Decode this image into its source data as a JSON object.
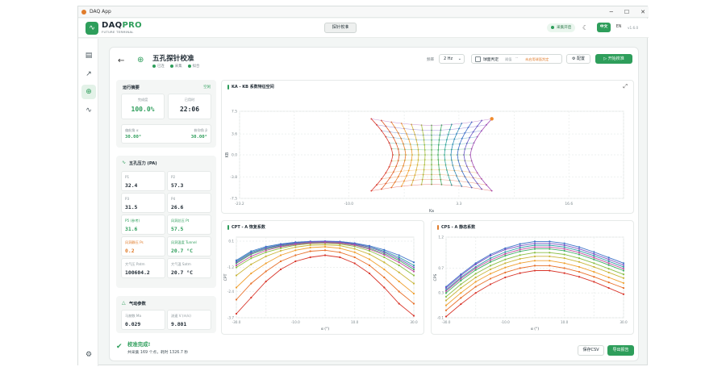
{
  "window": {
    "title": "DAQ App",
    "controls": [
      "─",
      "☐",
      "✕"
    ]
  },
  "header": {
    "brand_prefix": "DAQ",
    "brand_suffix": "PRO",
    "brand_sub": "FUTURE TERMINAL",
    "center_button": "探针校准",
    "status": "采集开启",
    "lang_active": "中文",
    "lang_other": "EN",
    "version": "v1.6.0"
  },
  "sidebar": {
    "items": [
      {
        "icon": "document-icon",
        "glyph": "▤",
        "active": false
      },
      {
        "icon": "trend-icon",
        "glyph": "↗",
        "active": false
      },
      {
        "icon": "target-icon",
        "glyph": "⊕",
        "active": true
      },
      {
        "icon": "curve-icon",
        "glyph": "∿",
        "active": false
      }
    ],
    "settings_glyph": "⚙"
  },
  "page": {
    "title": "五孔探针校准",
    "steps": [
      "已连",
      "采集",
      "拟合"
    ],
    "freq_label": "频率",
    "freq_value": "2 Hz",
    "ball_label": "球面判定",
    "ball_sub": "阈值",
    "ball_dash": "--",
    "ball_warn": "未启用球面判定",
    "config": "配置",
    "start": "开始校准"
  },
  "summary": {
    "title": "运行摘要",
    "state": "空闲",
    "done_label": "完成度",
    "done_value": "100.0%",
    "time_label": "已用时",
    "time_value": "22:06",
    "yaw_label": "偏航角 α",
    "yaw_value": "30.00°",
    "pitch_label": "俯仰角 β",
    "pitch_value": "30.00°"
  },
  "pressure": {
    "title": "五孔压力 (PA)",
    "cells": [
      {
        "k": "P1",
        "v": "32.4"
      },
      {
        "k": "P2",
        "v": "57.3"
      },
      {
        "k": "P3",
        "v": "31.5"
      },
      {
        "k": "P4",
        "v": "26.6"
      },
      {
        "k": "P5 (参考)",
        "v": "31.6"
      },
      {
        "k": "风洞总压 Pt",
        "v": "57.5"
      },
      {
        "k": "风洞静压 Ps",
        "v": "0.2"
      },
      {
        "k": "风洞温度 Tunnel",
        "v": "20.7 °C"
      },
      {
        "k": "大气压 Patm",
        "v": "100604.2"
      },
      {
        "k": "大气温 Satm",
        "v": "20.7 °C"
      }
    ]
  },
  "aero": {
    "title": "气动参数",
    "mach_label": "马赫数 Ma",
    "mach_value": "0.029",
    "vel_label": "流速 V (m/s)",
    "vel_value": "9.801"
  },
  "plots": {
    "top_title": "KA - KB 系数特征空间",
    "cpt_title": "CPT - A 恢复系数",
    "cps_title": "CPS - A 静态系数",
    "top_xlabel": "Ka",
    "top_ylabel": "KB",
    "cpt_ylabel": "CPT",
    "cps_ylabel": "CPS",
    "bottom_xlabel": "α (°)"
  },
  "chart_data": [
    {
      "type": "scatter",
      "title": "KA - KB 系数特征空间",
      "xlabel": "Ka",
      "ylabel": "KB",
      "xlim": [
        -23.2,
        23.2
      ],
      "ylim": [
        -7.5,
        7.5
      ],
      "x_ticks": [
        "-23.2",
        "-16.6",
        "-10.0",
        "-3.3",
        "3.3",
        "10.0",
        "16.6",
        "23.2"
      ],
      "y_ticks": [
        "7.5",
        "3.6",
        "0.0",
        "-3.8",
        "-7.5"
      ],
      "grid": true,
      "description_values": {
        "grid_columns": 13,
        "grid_rows": 13,
        "ka_range": [
          -6.5,
          6.5
        ],
        "kb_range": [
          -6.2,
          6.2
        ],
        "highlight_point": [
          6.5,
          6.2
        ]
      }
    },
    {
      "type": "line",
      "title": "CPT - A 恢复系数",
      "xlabel": "α (°)",
      "ylabel": "CPT",
      "xlim": [
        -30,
        30
      ],
      "ylim": [
        -3.7,
        0.3
      ],
      "x_ticks": [
        "-30.0",
        "-20.0",
        "-10.0",
        "0.0",
        "10.0",
        "20.0",
        "30.0"
      ],
      "y_ticks": [
        "0.1",
        "-1.2",
        "-2.4",
        "-3.7"
      ],
      "x": [
        -30,
        -25,
        -20,
        -15,
        -10,
        -5,
        0,
        5,
        10,
        15,
        20,
        25,
        30
      ],
      "series": [
        {
          "color": "#d9362b",
          "values": [
            -3.5,
            -2.7,
            -1.9,
            -1.3,
            -0.9,
            -0.7,
            -0.6,
            -0.7,
            -1.0,
            -1.5,
            -2.2,
            -3.0,
            -3.6
          ]
        },
        {
          "color": "#e8702a",
          "values": [
            -2.8,
            -2.0,
            -1.4,
            -0.9,
            -0.6,
            -0.4,
            -0.35,
            -0.45,
            -0.7,
            -1.1,
            -1.7,
            -2.4,
            -3.0
          ]
        },
        {
          "color": "#f0a030",
          "values": [
            -2.2,
            -1.5,
            -1.0,
            -0.6,
            -0.35,
            -0.22,
            -0.18,
            -0.25,
            -0.45,
            -0.8,
            -1.3,
            -1.9,
            -2.5
          ]
        },
        {
          "color": "#c9b63a",
          "values": [
            -1.6,
            -1.05,
            -0.65,
            -0.38,
            -0.2,
            -0.1,
            -0.08,
            -0.12,
            -0.28,
            -0.55,
            -0.95,
            -1.45,
            -2.0
          ]
        },
        {
          "color": "#8cbf45",
          "values": [
            -1.2,
            -0.75,
            -0.45,
            -0.25,
            -0.1,
            -0.02,
            0.0,
            -0.04,
            -0.16,
            -0.38,
            -0.7,
            -1.1,
            -1.6
          ]
        },
        {
          "color": "#3fae64",
          "values": [
            -1.0,
            -0.55,
            -0.3,
            -0.14,
            -0.03,
            0.03,
            0.05,
            0.02,
            -0.08,
            -0.26,
            -0.52,
            -0.85,
            -1.3
          ]
        },
        {
          "color": "#2f9aa8",
          "values": [
            -0.9,
            -0.45,
            -0.22,
            -0.08,
            0.02,
            0.07,
            0.08,
            0.06,
            -0.03,
            -0.18,
            -0.4,
            -0.7,
            -1.1
          ]
        },
        {
          "color": "#3c72c8",
          "values": [
            -0.85,
            -0.4,
            -0.17,
            -0.04,
            0.05,
            0.09,
            0.1,
            0.08,
            0.0,
            -0.13,
            -0.33,
            -0.6,
            -0.95
          ]
        },
        {
          "color": "#7b55c4",
          "values": [
            -0.95,
            -0.5,
            -0.25,
            -0.1,
            0.0,
            0.06,
            0.08,
            0.05,
            -0.04,
            -0.2,
            -0.45,
            -0.78,
            -1.2
          ]
        },
        {
          "color": "#c04aa0",
          "values": [
            -1.1,
            -0.65,
            -0.36,
            -0.18,
            -0.06,
            0.01,
            0.03,
            0.0,
            -0.1,
            -0.3,
            -0.58,
            -0.95,
            -1.4
          ]
        }
      ]
    },
    {
      "type": "line",
      "title": "CPS - A 静态系数",
      "xlabel": "α (°)",
      "ylabel": "CPS",
      "xlim": [
        -30,
        30
      ],
      "ylim": [
        -0.1,
        1.2
      ],
      "x_ticks": [
        "-30.0",
        "-20.0",
        "-10.0",
        "0.0",
        "10.0",
        "20.0",
        "30.0"
      ],
      "y_ticks": [
        "1.2",
        "0.7",
        "0.3",
        "-0.1"
      ],
      "x": [
        -30,
        -25,
        -20,
        -15,
        -10,
        -5,
        0,
        5,
        10,
        15,
        20,
        25,
        30
      ],
      "series": [
        {
          "color": "#d9362b",
          "values": [
            -0.08,
            0.12,
            0.3,
            0.44,
            0.55,
            0.62,
            0.66,
            0.66,
            0.62,
            0.56,
            0.48,
            0.38,
            0.28
          ]
        },
        {
          "color": "#e8702a",
          "values": [
            0.02,
            0.22,
            0.4,
            0.53,
            0.63,
            0.7,
            0.74,
            0.74,
            0.7,
            0.64,
            0.56,
            0.47,
            0.38
          ]
        },
        {
          "color": "#f0a030",
          "values": [
            0.1,
            0.3,
            0.48,
            0.61,
            0.71,
            0.78,
            0.82,
            0.82,
            0.78,
            0.72,
            0.64,
            0.55,
            0.46
          ]
        },
        {
          "color": "#c9b63a",
          "values": [
            0.18,
            0.38,
            0.55,
            0.68,
            0.78,
            0.85,
            0.89,
            0.89,
            0.86,
            0.8,
            0.72,
            0.63,
            0.54
          ]
        },
        {
          "color": "#8cbf45",
          "values": [
            0.24,
            0.44,
            0.61,
            0.74,
            0.84,
            0.91,
            0.95,
            0.95,
            0.92,
            0.86,
            0.78,
            0.69,
            0.6
          ]
        },
        {
          "color": "#3fae64",
          "values": [
            0.3,
            0.5,
            0.67,
            0.8,
            0.9,
            0.97,
            1.01,
            1.01,
            0.98,
            0.92,
            0.84,
            0.75,
            0.66
          ]
        },
        {
          "color": "#2f9aa8",
          "values": [
            0.35,
            0.55,
            0.72,
            0.86,
            0.96,
            1.03,
            1.07,
            1.07,
            1.04,
            0.98,
            0.9,
            0.81,
            0.72
          ]
        },
        {
          "color": "#3c72c8",
          "values": [
            0.4,
            0.6,
            0.78,
            0.92,
            1.02,
            1.09,
            1.13,
            1.13,
            1.1,
            1.04,
            0.96,
            0.87,
            0.78
          ]
        },
        {
          "color": "#7b55c4",
          "values": [
            0.38,
            0.58,
            0.76,
            0.9,
            1.0,
            1.06,
            1.1,
            1.1,
            1.07,
            1.01,
            0.93,
            0.84,
            0.75
          ]
        },
        {
          "color": "#c04aa0",
          "values": [
            0.33,
            0.53,
            0.7,
            0.83,
            0.93,
            1.0,
            1.04,
            1.04,
            1.01,
            0.95,
            0.87,
            0.78,
            0.69
          ]
        }
      ]
    }
  ],
  "footer": {
    "ok_title": "校准完成!",
    "ok_detail": "共采集 169 个点，耗时 1326.7 秒",
    "save": "保存CSV",
    "export": "导出报告"
  },
  "colors": {
    "accent": "#2e9e5b",
    "warn": "#e07c2b"
  }
}
